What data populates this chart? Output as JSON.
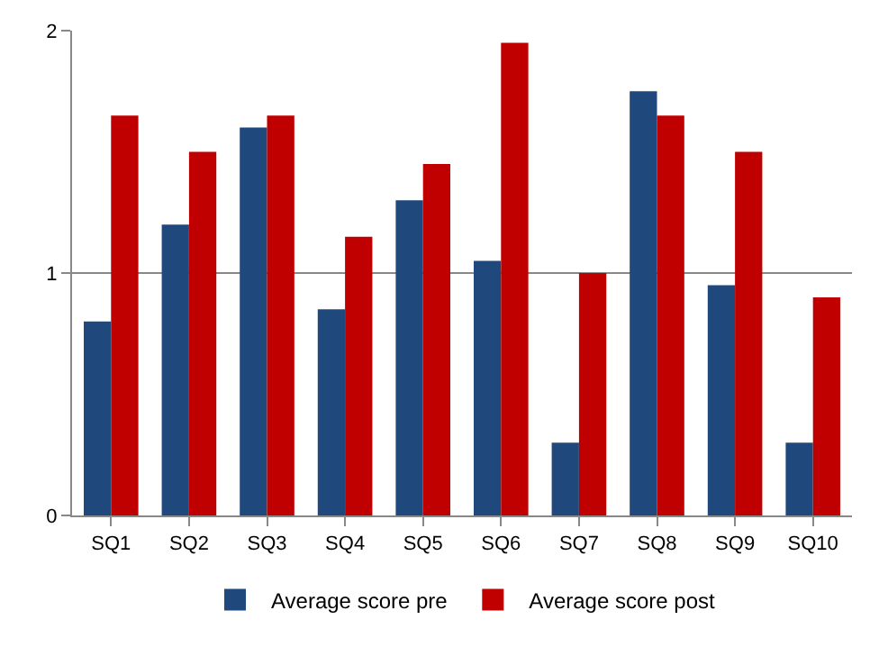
{
  "chart_data": {
    "type": "bar",
    "categories": [
      "SQ1",
      "SQ2",
      "SQ3",
      "SQ4",
      "SQ5",
      "SQ6",
      "SQ7",
      "SQ8",
      "SQ9",
      "SQ10"
    ],
    "series": [
      {
        "name": "Average score pre",
        "color": "#1f497d",
        "values": [
          0.8,
          1.2,
          1.6,
          0.85,
          1.3,
          1.05,
          0.3,
          1.75,
          0.95,
          0.3
        ]
      },
      {
        "name": "Average score post",
        "color": "#c00000",
        "values": [
          1.65,
          1.5,
          1.65,
          1.15,
          1.45,
          1.95,
          1.0,
          1.65,
          1.5,
          0.9
        ]
      }
    ],
    "ylim": [
      0,
      2
    ],
    "yticks": [
      0,
      1,
      2
    ],
    "grid": "y",
    "legend": "bottom"
  }
}
